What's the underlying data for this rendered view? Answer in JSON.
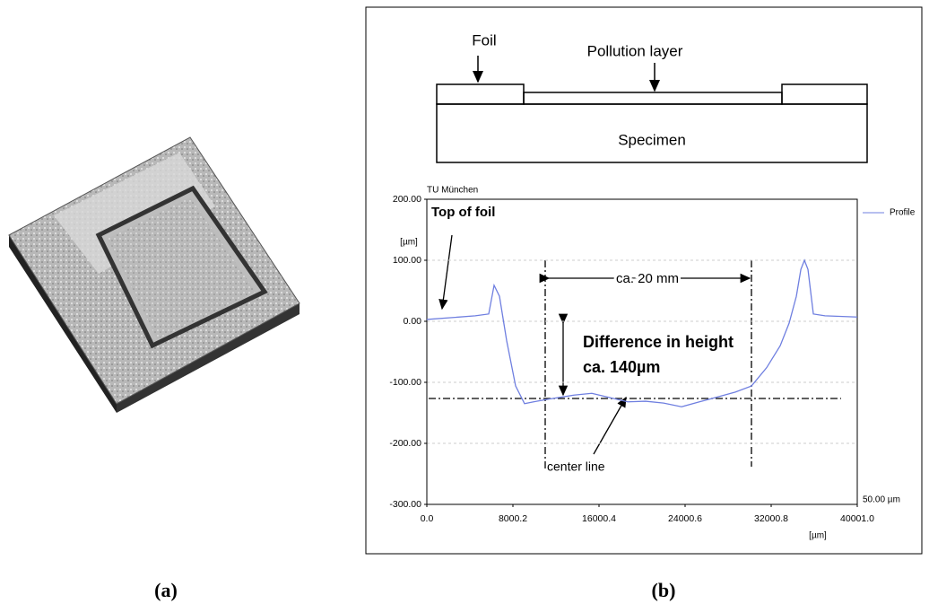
{
  "panel_labels": [
    "(a)",
    "(b)"
  ],
  "schematic": {
    "foil": "Foil",
    "pollution_layer": "Pollution layer",
    "specimen": "Specimen"
  },
  "chart_data": {
    "type": "line",
    "source": "TU München",
    "y_unit": "[µm]",
    "x_unit": "[µm]",
    "scale_label": "50.00 µm",
    "x": [
      0,
      4500,
      5750,
      6250,
      6750,
      7420,
      8250,
      9080,
      9920,
      11170,
      13670,
      15330,
      17000,
      18670,
      20330,
      22000,
      23670,
      25330,
      27000,
      28670,
      30170,
      31580,
      32840,
      33670,
      34340,
      34760,
      35090,
      35420,
      35920,
      37000,
      40001
    ],
    "series": [
      {
        "name": "Profile",
        "color": "#6f7fe0",
        "values": [
          3,
          9,
          12,
          59,
          41,
          -32,
          -106,
          -135,
          -132,
          -128,
          -121,
          -118,
          -125,
          -132,
          -131,
          -134,
          -140,
          -132,
          -124,
          -116,
          -106,
          -76,
          -40,
          -3,
          41,
          85,
          100,
          85,
          12,
          9,
          7
        ]
      }
    ],
    "xlim": [
      0,
      40001
    ],
    "ylim": [
      -300,
      200
    ],
    "xticks": [
      {
        "value": 0,
        "label": "0.0"
      },
      8000.2,
      16000.4,
      24000.6,
      32000.8,
      {
        "value": 40001,
        "label": "40001.0"
      }
    ],
    "yticks": [
      {
        "value": 200,
        "label": "200.00"
      },
      {
        "value": 100,
        "label": "100.00"
      },
      {
        "value": 0,
        "label": "0.00"
      },
      {
        "value": -100,
        "label": "-100.00"
      },
      {
        "value": -200,
        "label": "-200.00"
      },
      {
        "value": -300,
        "label": "-300.00"
      }
    ],
    "grid": true,
    "annotations": {
      "top_of_foil": "Top of foil",
      "width": "ca. 20 mm",
      "difference": "Difference in height",
      "difference_value": "ca. 140µm",
      "center_line": "center line"
    }
  }
}
